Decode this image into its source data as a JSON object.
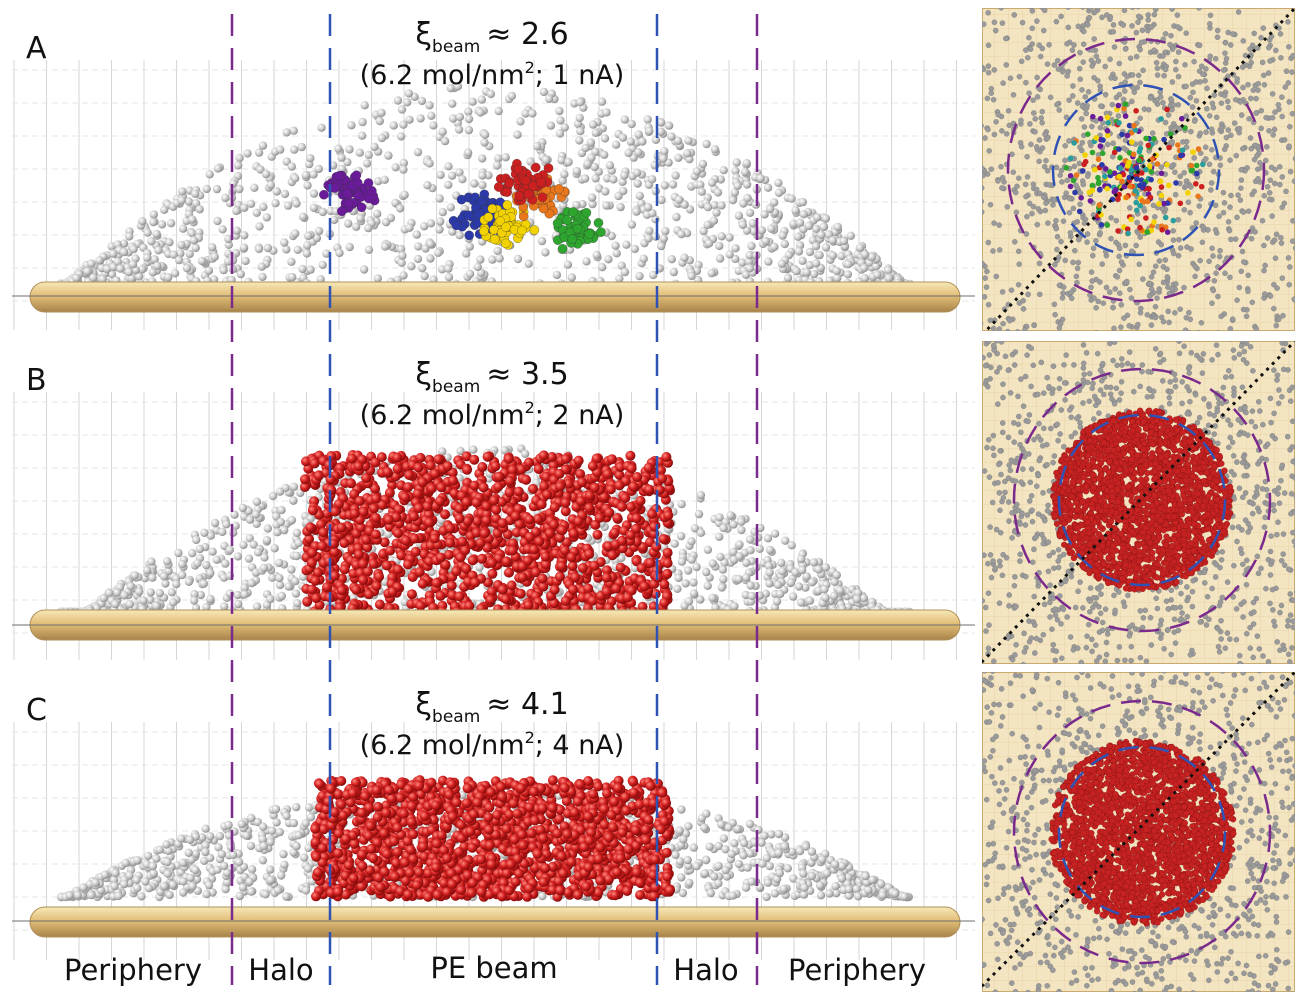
{
  "panels": [
    {
      "letter": "A",
      "xi_symbol": "ξ",
      "xi_sub": "beam",
      "xi_rel": "≈ 2.6",
      "cond_pre": "(6.2 mol/nm",
      "cond_sup": "2",
      "cond_post": "; 1 nA)"
    },
    {
      "letter": "B",
      "xi_symbol": "ξ",
      "xi_sub": "beam",
      "xi_rel": "≈ 3.5",
      "cond_pre": "(6.2 mol/nm",
      "cond_sup": "2",
      "cond_post": "; 2 nA)"
    },
    {
      "letter": "C",
      "xi_symbol": "ξ",
      "xi_sub": "beam",
      "xi_rel": "≈ 4.1",
      "cond_pre": "(6.2 mol/nm",
      "cond_sup": "2",
      "cond_post": "; 4 nA)"
    }
  ],
  "regions": {
    "periphery_left": "Periphery",
    "halo_left": "Halo",
    "pe_beam": "PE beam",
    "halo_right": "Halo",
    "periphery_right": "Periphery"
  },
  "colors": {
    "halo_line": "#7a2a8c",
    "beam_line": "#2f52b5",
    "unexposed_molecule": "#c4c4c4",
    "exposed_molecule": "#cc1f1f",
    "substrate": "#e0bf7f",
    "topview_background": "#f5e7c6"
  }
}
